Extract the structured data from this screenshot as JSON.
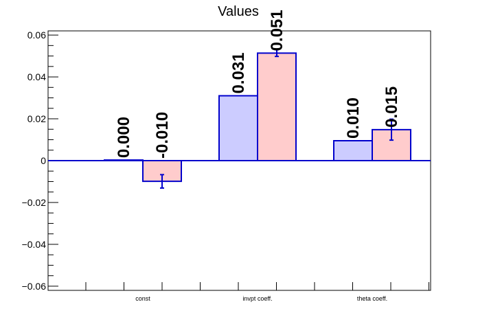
{
  "chart_data": {
    "type": "bar",
    "title": "Values",
    "xlabel": "",
    "ylabel": "",
    "categories": [
      "const",
      "invpt coeff.",
      "theta coeff."
    ],
    "ylim": [
      -0.062,
      0.062
    ],
    "yticks": [
      -0.06,
      -0.04,
      -0.02,
      0,
      0.02,
      0.04,
      0.06
    ],
    "ytick_labels": [
      "−0.06",
      "−0.04",
      "−0.02",
      "0",
      "0.02",
      "0.04",
      "0.06"
    ],
    "grid": false,
    "series": [
      {
        "values": [
          0.0003,
          0.031,
          0.0095
        ],
        "labels": [
          "0.000",
          "0.031",
          "0.010"
        ],
        "errors": [
          0,
          0,
          0
        ],
        "fill": "#ccccff",
        "stroke": "#0000cc"
      },
      {
        "values": [
          -0.0099,
          0.0514,
          0.0148
        ],
        "labels": [
          "-0.010",
          "0.051",
          "0.015"
        ],
        "errors": [
          0.0032,
          0.0016,
          0.005
        ],
        "fill": "#ffcccc",
        "stroke": "#0000cc"
      }
    ],
    "colors": {
      "axis": "#000000",
      "zero_line": "#0000cc",
      "error_bar": "#0000cc"
    }
  }
}
